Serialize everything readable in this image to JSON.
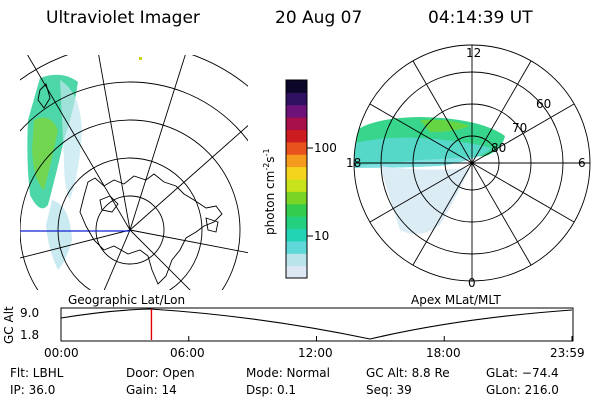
{
  "header": {
    "title": "Ultraviolet Imager",
    "date": "20 Aug 07",
    "time": "04:14:39  UT"
  },
  "left_panel": {
    "caption": "Geographic Lat/Lon"
  },
  "right_panel": {
    "caption": "Apex  MLat/MLT",
    "mlt_labels": {
      "top": "12",
      "left": "18",
      "right": "6",
      "bottom": "0"
    },
    "lat_labels": [
      "60",
      "70",
      "80"
    ]
  },
  "colorbar": {
    "label": "photon cm",
    "label_sup1": "-2",
    "label_mid": "s",
    "label_sup2": "-1",
    "ticks": [
      "100",
      "10"
    ],
    "colors_bottom_to_top": [
      "#dde8f4",
      "#b8e4ea",
      "#5ed8d8",
      "#22d4b4",
      "#22d080",
      "#34cc4c",
      "#7ad424",
      "#c8e21c",
      "#f4d41c",
      "#f49a1c",
      "#e8521c",
      "#cc1c20",
      "#a8104c",
      "#6c1278",
      "#301060",
      "#0c0628"
    ]
  },
  "altitude_plot": {
    "axis_title": "GC Alt",
    "ytick_top": "9.0",
    "ytick_bottom": "1.8",
    "xticks": [
      "00:00",
      "06:00",
      "12:00",
      "18:00",
      "23:59"
    ],
    "current_time_fraction": 0.177,
    "marker_color": "#e00000"
  },
  "info": {
    "filter": "Flt: LBHL",
    "ip": "IP: 36.0",
    "door": "Door: Open",
    "gain": "Gain: 14",
    "mode": "Mode:  Normal",
    "dsp": "Dsp:     0.1",
    "gc_alt": "GC Alt: 8.8 Re",
    "seq": "Seq: 39",
    "glat": "GLat: −74.4",
    "glon": "GLon: 216.0"
  },
  "colors": {
    "map_line": "#000000",
    "meridian_blue": "#1020d0"
  }
}
